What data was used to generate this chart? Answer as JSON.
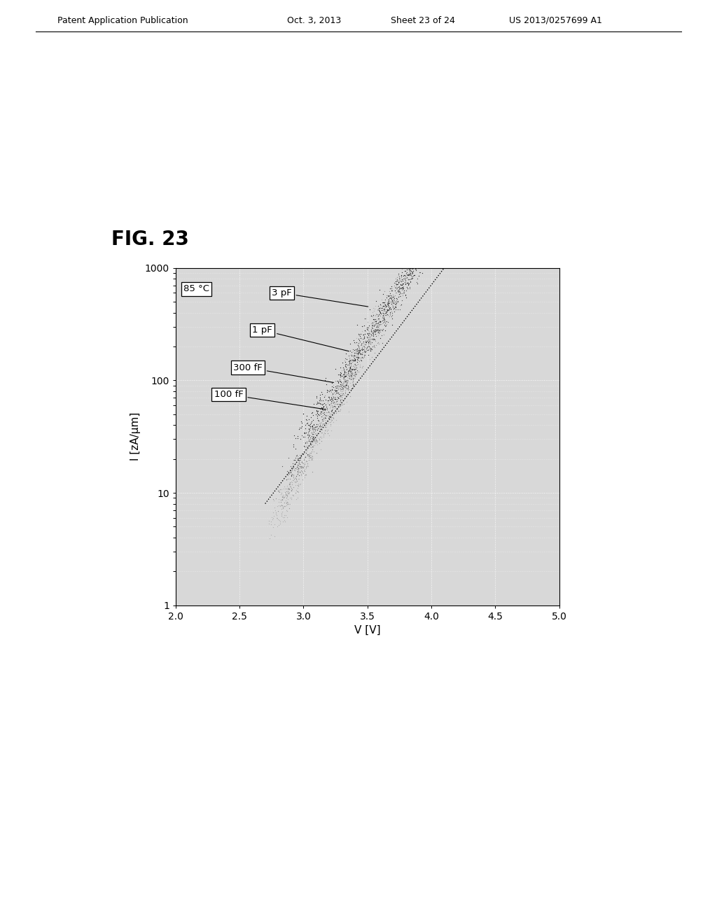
{
  "fig_label": "FIG. 23",
  "xlabel": "V [V]",
  "ylabel": "I [zA/μm]",
  "xlim": [
    2.0,
    5.0
  ],
  "xticks": [
    2.0,
    2.5,
    3.0,
    3.5,
    4.0,
    4.5,
    5.0
  ],
  "yticks_major": [
    1,
    10,
    100,
    1000
  ],
  "ytick_labels": [
    "1",
    "10",
    "100",
    "1000"
  ],
  "temp_label": "85 °C",
  "series_labels": [
    "3 pF",
    "1 pF",
    "300 fF",
    "100 fF"
  ],
  "background_color": "#ffffff",
  "plot_area_bg": "#d8d8d8",
  "header_text": "Patent Application Publication",
  "header_date": "Oct. 3, 2013",
  "header_sheet": "Sheet 23 of 24",
  "header_patent": "US 2013/0257699 A1"
}
